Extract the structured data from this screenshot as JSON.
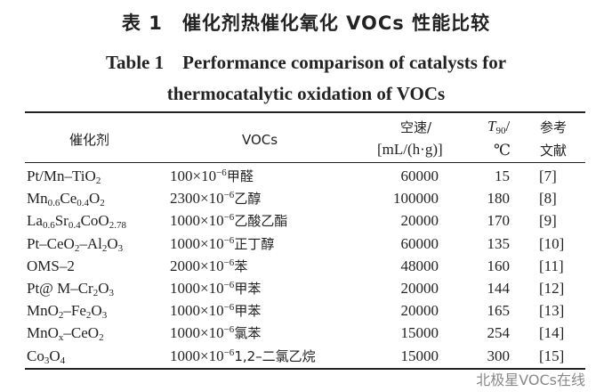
{
  "title_cn": "表 1　催化剂热催化氧化 VOCs 性能比较",
  "title_en_line1": "Table 1　Performance comparison of catalysts for",
  "title_en_line2": "thermocatalytic oxidation of VOCs",
  "headers": {
    "catalyst": "催化剂",
    "vocs": "VOCs",
    "space_velocity_1": "空速/",
    "space_velocity_2": "[mL/(h·g)]",
    "t90_symbol": "T",
    "t90_sub": "90",
    "t90_slash": "/",
    "t90_unit": "℃",
    "ref_1": "参考",
    "ref_2": "文献"
  },
  "rows": [
    {
      "catalyst": [
        [
          "Pt/Mn–TiO",
          ""
        ],
        [
          "2",
          "sub"
        ]
      ],
      "conc": "100",
      "voc": "甲醛",
      "sv": "60000",
      "t90": "15",
      "ref": "[7]"
    },
    {
      "catalyst": [
        [
          "Mn",
          ""
        ],
        [
          "0.6",
          "sub"
        ],
        [
          "Ce",
          ""
        ],
        [
          "0.4",
          "sub"
        ],
        [
          "O",
          ""
        ],
        [
          "2",
          "sub"
        ]
      ],
      "conc": "2300",
      "voc": "乙醇",
      "sv": "100000",
      "t90": "180",
      "ref": "[8]"
    },
    {
      "catalyst": [
        [
          "La",
          ""
        ],
        [
          "0.6",
          "sub"
        ],
        [
          "Sr",
          ""
        ],
        [
          "0.4",
          "sub"
        ],
        [
          "CoO",
          ""
        ],
        [
          "2.78",
          "sub"
        ]
      ],
      "conc": "1000",
      "voc": "乙酸乙酯",
      "sv": "20000",
      "t90": "170",
      "ref": "[9]"
    },
    {
      "catalyst": [
        [
          "Pt–CeO",
          ""
        ],
        [
          "2",
          "sub"
        ],
        [
          "–Al",
          ""
        ],
        [
          "2",
          "sub"
        ],
        [
          "O",
          ""
        ],
        [
          "3",
          "sub"
        ]
      ],
      "conc": "1000",
      "voc": "正丁醇",
      "sv": "60000",
      "t90": "135",
      "ref": "[10]"
    },
    {
      "catalyst": [
        [
          "OMS–2",
          ""
        ]
      ],
      "conc": "2000",
      "voc": "苯",
      "sv": "48000",
      "t90": "160",
      "ref": "[11]"
    },
    {
      "catalyst": [
        [
          "Pt@ M–Cr",
          ""
        ],
        [
          "2",
          "sub"
        ],
        [
          "O",
          ""
        ],
        [
          "3",
          "sub"
        ]
      ],
      "conc": "1000",
      "voc": "甲苯",
      "sv": "20000",
      "t90": "144",
      "ref": "[12]"
    },
    {
      "catalyst": [
        [
          "MnO",
          ""
        ],
        [
          "2",
          "sub"
        ],
        [
          "–Fe",
          ""
        ],
        [
          "2",
          "sub"
        ],
        [
          "O",
          ""
        ],
        [
          "3",
          "sub"
        ]
      ],
      "conc": "1000",
      "voc": "甲苯",
      "sv": "20000",
      "t90": "165",
      "ref": "[13]"
    },
    {
      "catalyst": [
        [
          "MnO",
          ""
        ],
        [
          "x",
          "sub"
        ],
        [
          "–CeO",
          ""
        ],
        [
          "2",
          "sub"
        ]
      ],
      "conc": "1000",
      "voc": "氯苯",
      "sv": "15000",
      "t90": "254",
      "ref": "[14]"
    },
    {
      "catalyst": [
        [
          "Co",
          ""
        ],
        [
          "3",
          "sub"
        ],
        [
          "O",
          ""
        ],
        [
          "4",
          "sub"
        ]
      ],
      "conc": "1000",
      "voc": "1,2–二氯乙烷",
      "sv": "15000",
      "t90": "300",
      "ref": "[15]"
    }
  ],
  "conc_unit_base": "×10",
  "conc_unit_exp": "−6",
  "watermark": "北极星VOCs在线"
}
